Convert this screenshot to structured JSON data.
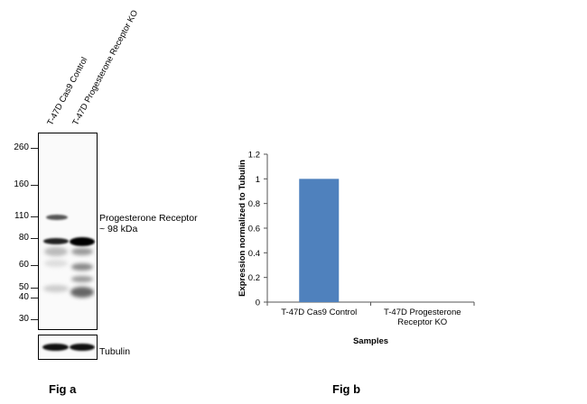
{
  "fig_a": {
    "label": "Fig a",
    "lanes": [
      "T-47D Cas9 Control",
      "T-47D Progesterone Receptor KO"
    ],
    "markers": [
      "260",
      "160",
      "110",
      "80",
      "60",
      "50",
      "40",
      "30"
    ],
    "band_label_line1": "Progesterone Receptor",
    "band_label_line2": "~ 98 kDa",
    "loading_control": "Tubulin"
  },
  "fig_b": {
    "label": "Fig b",
    "chart_data": {
      "type": "bar",
      "categories": [
        "T-47D Cas9 Control",
        "T-47D Progesterone Receptor KO"
      ],
      "category_lines": [
        [
          "T-47D Cas9 Control"
        ],
        [
          "T-47D Progesterone",
          "Receptor KO"
        ]
      ],
      "values": [
        1,
        0
      ],
      "ylabel": "Expression  normalized to Tubulin",
      "xlabel": "Samples",
      "ylim": [
        0,
        1.2
      ],
      "yticks": [
        "0",
        "0.2",
        "0.4",
        "0.6",
        "0.8",
        "1",
        "1.2"
      ],
      "grid": false,
      "bar_color": "#4f81bd"
    }
  }
}
